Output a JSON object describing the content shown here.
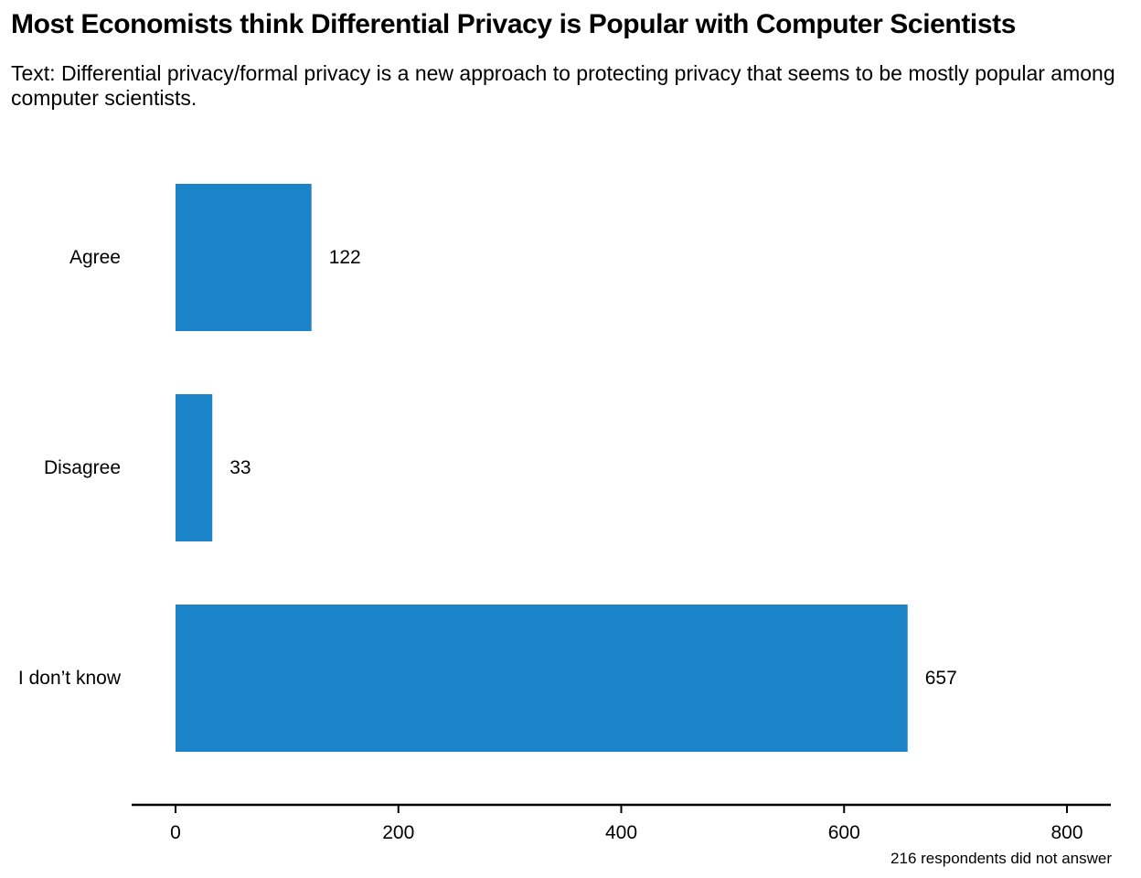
{
  "chart_data": {
    "type": "bar",
    "orientation": "horizontal",
    "title": "Most Economists think Differential Privacy is Popular with Computer Scientists",
    "subtitle": "Text: Differential privacy/formal privacy is a new approach to protecting privacy that seems to be mostly popular among computer scientists.",
    "categories": [
      "Agree",
      "Disagree",
      "I don’t know"
    ],
    "values": [
      122,
      33,
      657
    ],
    "data_labels": [
      "122",
      "33",
      "657"
    ],
    "xlim": [
      0,
      800
    ],
    "xticks": [
      0,
      200,
      400,
      600,
      800
    ],
    "xtick_labels": [
      "0",
      "200",
      "400",
      "600",
      "800"
    ],
    "xlabel": "",
    "ylabel": "",
    "grid": false,
    "legend": "none",
    "bar_color": "#1b83c8",
    "note": "216 respondents did not answer"
  }
}
